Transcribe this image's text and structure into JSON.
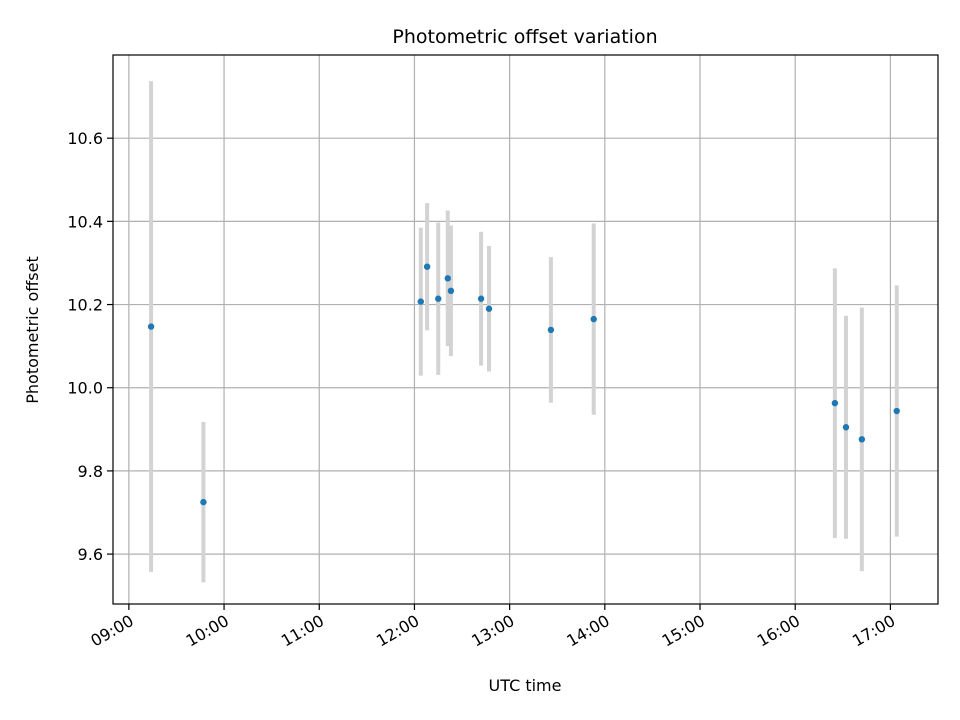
{
  "chart_data": {
    "type": "scatter",
    "title": "Photometric offset variation",
    "xlabel": "UTC time",
    "ylabel": "Photometric offset",
    "x_ticks": [
      "09:00",
      "10:00",
      "11:00",
      "12:00",
      "13:00",
      "14:00",
      "15:00",
      "16:00",
      "17:00"
    ],
    "xlim": [
      "08:50",
      "17:30"
    ],
    "ylim": [
      9.48,
      10.8
    ],
    "y_ticks": [
      9.6,
      9.8,
      10.0,
      10.2,
      10.4,
      10.6
    ],
    "grid": true,
    "legend": "none",
    "colors": {
      "point": "#1f77b4",
      "errorbar": "#d3d3d3",
      "grid": "#b0b0b0"
    },
    "points": [
      {
        "x": "09:14",
        "y": 10.147,
        "yerr": 0.59
      },
      {
        "x": "09:47",
        "y": 9.725,
        "yerr": 0.193
      },
      {
        "x": "12:04",
        "y": 10.207,
        "yerr": 0.178
      },
      {
        "x": "12:08",
        "y": 10.291,
        "yerr": 0.153
      },
      {
        "x": "12:15",
        "y": 10.214,
        "yerr": 0.183
      },
      {
        "x": "12:21",
        "y": 10.263,
        "yerr": 0.163
      },
      {
        "x": "12:23",
        "y": 10.233,
        "yerr": 0.157
      },
      {
        "x": "12:42",
        "y": 10.214,
        "yerr": 0.161
      },
      {
        "x": "12:47",
        "y": 10.19,
        "yerr": 0.151
      },
      {
        "x": "13:26",
        "y": 10.139,
        "yerr": 0.175
      },
      {
        "x": "13:53",
        "y": 10.165,
        "yerr": 0.23
      },
      {
        "x": "16:25",
        "y": 9.963,
        "yerr": 0.324
      },
      {
        "x": "16:32",
        "y": 9.905,
        "yerr": 0.268
      },
      {
        "x": "16:42",
        "y": 9.876,
        "yerr": 0.317
      },
      {
        "x": "17:04",
        "y": 9.944,
        "yerr": 0.302
      }
    ]
  }
}
